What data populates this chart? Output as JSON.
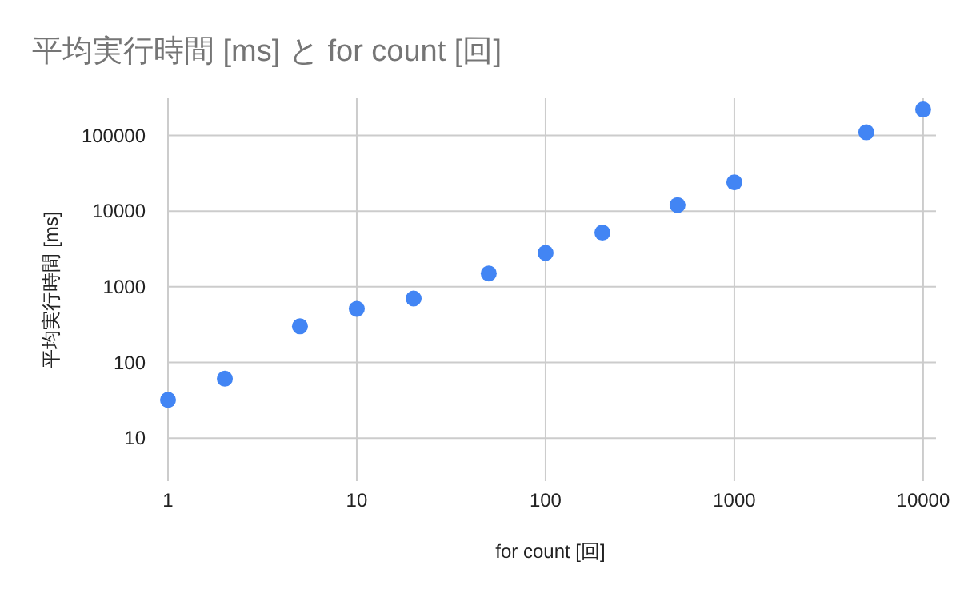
{
  "chart_data": {
    "type": "scatter",
    "title": "平均実行時間 [ms] と for count [回]",
    "xlabel": "for count [回]",
    "ylabel": "平均実行時間 [ms]",
    "log": "xy",
    "grid": true,
    "marker": "circle",
    "x": [
      1,
      2,
      5,
      10,
      20,
      50,
      100,
      200,
      500,
      1000,
      5000,
      10000
    ],
    "series": [
      {
        "color": "#4285f4",
        "values": [
          32,
          61,
          300,
          510,
          700,
          1500,
          2800,
          5200,
          12000,
          24000,
          110000,
          220000
        ]
      }
    ],
    "xlim": [
      1,
      11700
    ],
    "xticks": [
      1,
      10,
      100,
      1000,
      10000
    ],
    "ylim": [
      2.7,
      310000
    ],
    "yticks": [
      10,
      100,
      1000,
      10000,
      100000
    ]
  }
}
